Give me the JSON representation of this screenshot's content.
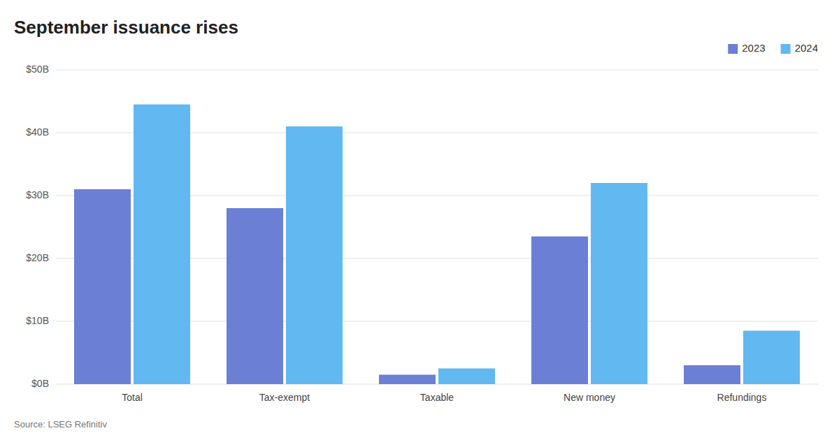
{
  "chart_data": {
    "type": "bar",
    "title": "September issuance rises",
    "categories": [
      "Total",
      "Tax-exempt",
      "Taxable",
      "New money",
      "Refundings"
    ],
    "series": [
      {
        "name": "2023",
        "color": "#6B7FD4",
        "values": [
          31.0,
          28.0,
          1.5,
          23.5,
          3.0
        ]
      },
      {
        "name": "2024",
        "color": "#62B8F0",
        "values": [
          44.5,
          41.0,
          2.5,
          32.0,
          8.5
        ]
      }
    ],
    "ylim": [
      0,
      50
    ],
    "yticks": [
      {
        "value": 0,
        "label": "$0B"
      },
      {
        "value": 10,
        "label": "$10B"
      },
      {
        "value": 20,
        "label": "$20B"
      },
      {
        "value": 30,
        "label": "$30B"
      },
      {
        "value": 40,
        "label": "$40B"
      },
      {
        "value": 50,
        "label": "$50B"
      }
    ],
    "grid": true,
    "legend": "upper right",
    "source": "Source: LSEG Refinitiv"
  }
}
